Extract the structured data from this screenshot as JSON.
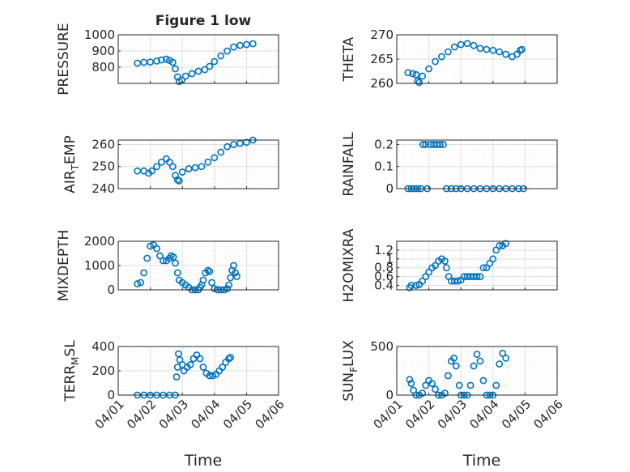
{
  "figure": {
    "title": "Figure 1 low",
    "xlabel": "Time",
    "colors": {
      "marker": "#0072BD",
      "grid": "#dedede",
      "axis": "#262626"
    },
    "x_ticks": [
      "04/01",
      "04/02",
      "04/03",
      "04/04",
      "04/05",
      "04/06"
    ]
  },
  "chart_data": [
    {
      "id": "pressure",
      "type": "scatter",
      "ylabel": "PRESSURE",
      "ylim": [
        700,
        1000
      ],
      "yticks": [
        800,
        900,
        1000
      ],
      "yticklabels": [
        "800",
        "900",
        "1000"
      ],
      "xlim": [
        "04/01",
        "04/06"
      ],
      "show_xticks": false,
      "points": [
        [
          1.6,
          825
        ],
        [
          1.8,
          830
        ],
        [
          2.0,
          832
        ],
        [
          2.2,
          838
        ],
        [
          2.35,
          845
        ],
        [
          2.5,
          850
        ],
        [
          2.6,
          842
        ],
        [
          2.7,
          830
        ],
        [
          2.78,
          790
        ],
        [
          2.85,
          740
        ],
        [
          2.9,
          712
        ],
        [
          2.98,
          720
        ],
        [
          3.1,
          745
        ],
        [
          3.3,
          760
        ],
        [
          3.5,
          775
        ],
        [
          3.7,
          785
        ],
        [
          3.85,
          805
        ],
        [
          4.0,
          835
        ],
        [
          4.2,
          870
        ],
        [
          4.4,
          900
        ],
        [
          4.6,
          925
        ],
        [
          4.8,
          935
        ],
        [
          5.0,
          940
        ],
        [
          5.2,
          945
        ]
      ]
    },
    {
      "id": "theta",
      "type": "scatter",
      "ylabel": "THETA",
      "ylim": [
        260,
        270
      ],
      "yticks": [
        260,
        265,
        270
      ],
      "yticklabels": [
        "260",
        "265",
        "270"
      ],
      "xlim": [
        "04/01",
        "04/06"
      ],
      "show_xticks": false,
      "points": [
        [
          1.35,
          262.2
        ],
        [
          1.5,
          262.0
        ],
        [
          1.6,
          261.8
        ],
        [
          1.65,
          260.5
        ],
        [
          1.7,
          260.2
        ],
        [
          1.8,
          261.5
        ],
        [
          2.0,
          263.0
        ],
        [
          2.2,
          264.5
        ],
        [
          2.4,
          265.5
        ],
        [
          2.6,
          266.5
        ],
        [
          2.8,
          267.5
        ],
        [
          3.0,
          268.0
        ],
        [
          3.2,
          268.2
        ],
        [
          3.4,
          267.8
        ],
        [
          3.6,
          267.2
        ],
        [
          3.8,
          267.0
        ],
        [
          4.0,
          266.8
        ],
        [
          4.2,
          266.5
        ],
        [
          4.4,
          266.0
        ],
        [
          4.6,
          265.5
        ],
        [
          4.75,
          266.0
        ],
        [
          4.85,
          266.8
        ],
        [
          4.9,
          267.0
        ]
      ]
    },
    {
      "id": "air_temp",
      "type": "scatter",
      "ylabel": "AIR",
      "ylabel_sub": "T",
      "ylabel_suffix": "EMP",
      "ylim": [
        240,
        262
      ],
      "yticks": [
        240,
        250,
        260
      ],
      "yticklabels": [
        "240",
        "250",
        "260"
      ],
      "xlim": [
        "04/01",
        "04/06"
      ],
      "show_xticks": false,
      "points": [
        [
          1.6,
          248
        ],
        [
          1.8,
          248
        ],
        [
          1.95,
          247
        ],
        [
          2.05,
          248
        ],
        [
          2.2,
          250
        ],
        [
          2.35,
          252
        ],
        [
          2.5,
          253.5
        ],
        [
          2.6,
          252
        ],
        [
          2.7,
          250
        ],
        [
          2.78,
          246
        ],
        [
          2.85,
          244
        ],
        [
          2.9,
          243.5
        ],
        [
          3.0,
          247.5
        ],
        [
          3.2,
          249
        ],
        [
          3.4,
          249.5
        ],
        [
          3.6,
          250
        ],
        [
          3.8,
          252
        ],
        [
          4.0,
          254
        ],
        [
          4.2,
          256.5
        ],
        [
          4.4,
          259
        ],
        [
          4.6,
          260
        ],
        [
          4.8,
          260.5
        ],
        [
          5.0,
          261
        ],
        [
          5.2,
          262
        ]
      ]
    },
    {
      "id": "rainfall",
      "type": "scatter",
      "ylabel": "RAINFALL",
      "ylim": [
        0,
        0.22
      ],
      "yticks": [
        0,
        0.1,
        0.2
      ],
      "yticklabels": [
        "0",
        "0.1",
        "0.2"
      ],
      "xlim": [
        "04/01",
        "04/06"
      ],
      "show_xticks": false,
      "points": [
        [
          1.35,
          0
        ],
        [
          1.45,
          0
        ],
        [
          1.55,
          0
        ],
        [
          1.65,
          0
        ],
        [
          1.75,
          0
        ],
        [
          1.82,
          0.2
        ],
        [
          1.9,
          0.2
        ],
        [
          1.95,
          0
        ],
        [
          2.05,
          0.2
        ],
        [
          2.15,
          0.2
        ],
        [
          2.25,
          0.2
        ],
        [
          2.35,
          0.2
        ],
        [
          2.45,
          0.2
        ],
        [
          2.55,
          0
        ],
        [
          2.7,
          0
        ],
        [
          2.85,
          0
        ],
        [
          3.0,
          0
        ],
        [
          3.2,
          0
        ],
        [
          3.4,
          0
        ],
        [
          3.6,
          0
        ],
        [
          3.8,
          0
        ],
        [
          4.0,
          0
        ],
        [
          4.2,
          0
        ],
        [
          4.4,
          0
        ],
        [
          4.6,
          0
        ],
        [
          4.8,
          0
        ],
        [
          4.95,
          0
        ]
      ]
    },
    {
      "id": "mixdepth",
      "type": "scatter",
      "ylabel": "MIXDEPTH",
      "ylim": [
        0,
        2000
      ],
      "yticks": [
        0,
        1000,
        2000
      ],
      "yticklabels": [
        "0",
        "1000",
        "2000"
      ],
      "xlim": [
        "04/01",
        "04/06"
      ],
      "show_xticks": false,
      "points": [
        [
          1.6,
          250
        ],
        [
          1.7,
          300
        ],
        [
          1.8,
          700
        ],
        [
          1.9,
          1300
        ],
        [
          2.0,
          1800
        ],
        [
          2.1,
          1850
        ],
        [
          2.2,
          1700
        ],
        [
          2.3,
          1400
        ],
        [
          2.4,
          1200
        ],
        [
          2.5,
          1200
        ],
        [
          2.6,
          1300
        ],
        [
          2.65,
          1400
        ],
        [
          2.72,
          1350
        ],
        [
          2.78,
          1100
        ],
        [
          2.85,
          700
        ],
        [
          2.9,
          400
        ],
        [
          3.0,
          300
        ],
        [
          3.1,
          200
        ],
        [
          3.2,
          100
        ],
        [
          3.3,
          0
        ],
        [
          3.4,
          0
        ],
        [
          3.5,
          0
        ],
        [
          3.55,
          100
        ],
        [
          3.6,
          200
        ],
        [
          3.65,
          400
        ],
        [
          3.72,
          700
        ],
        [
          3.8,
          800
        ],
        [
          3.85,
          750
        ],
        [
          3.92,
          300
        ],
        [
          4.0,
          50
        ],
        [
          4.1,
          0
        ],
        [
          4.2,
          0
        ],
        [
          4.3,
          0
        ],
        [
          4.4,
          50
        ],
        [
          4.45,
          200
        ],
        [
          4.5,
          500
        ],
        [
          4.55,
          800
        ],
        [
          4.6,
          1000
        ],
        [
          4.65,
          700
        ],
        [
          4.7,
          550
        ]
      ]
    },
    {
      "id": "h2omixra",
      "type": "scatter",
      "ylabel": "H2OMIXRA",
      "ylim": [
        0.3,
        1.4
      ],
      "yticks": [
        0.4,
        0.6,
        0.8,
        1,
        1.2
      ],
      "yticklabels": [
        "0.4",
        "0.6",
        "0.8",
        "1",
        "1.2"
      ],
      "xlim": [
        "04/01",
        "04/06"
      ],
      "show_xticks": false,
      "points": [
        [
          1.4,
          0.35
        ],
        [
          1.45,
          0.4
        ],
        [
          1.6,
          0.4
        ],
        [
          1.7,
          0.42
        ],
        [
          1.8,
          0.5
        ],
        [
          1.9,
          0.6
        ],
        [
          2.0,
          0.7
        ],
        [
          2.1,
          0.8
        ],
        [
          2.2,
          0.85
        ],
        [
          2.3,
          0.95
        ],
        [
          2.4,
          1.0
        ],
        [
          2.5,
          0.95
        ],
        [
          2.55,
          0.8
        ],
        [
          2.62,
          0.6
        ],
        [
          2.7,
          0.5
        ],
        [
          2.8,
          0.5
        ],
        [
          2.9,
          0.5
        ],
        [
          3.0,
          0.52
        ],
        [
          3.1,
          0.6
        ],
        [
          3.2,
          0.6
        ],
        [
          3.3,
          0.6
        ],
        [
          3.4,
          0.6
        ],
        [
          3.5,
          0.6
        ],
        [
          3.6,
          0.6
        ],
        [
          3.7,
          0.8
        ],
        [
          3.8,
          0.8
        ],
        [
          3.9,
          0.9
        ],
        [
          4.0,
          1.0
        ],
        [
          4.1,
          1.2
        ],
        [
          4.2,
          1.3
        ],
        [
          4.3,
          1.3
        ],
        [
          4.4,
          1.35
        ]
      ]
    },
    {
      "id": "terr_msl",
      "type": "scatter",
      "ylabel": "TERR",
      "ylabel_sub": "M",
      "ylabel_suffix": "SL",
      "ylim": [
        0,
        400
      ],
      "yticks": [
        0,
        200,
        400
      ],
      "yticklabels": [
        "0",
        "200",
        "400"
      ],
      "xlim": [
        "04/01",
        "04/06"
      ],
      "show_xticks": true,
      "points": [
        [
          1.6,
          0
        ],
        [
          1.8,
          0
        ],
        [
          2.0,
          0
        ],
        [
          2.2,
          0
        ],
        [
          2.4,
          0
        ],
        [
          2.6,
          0
        ],
        [
          2.78,
          0
        ],
        [
          2.82,
          150
        ],
        [
          2.85,
          230
        ],
        [
          2.88,
          340
        ],
        [
          2.92,
          290
        ],
        [
          3.0,
          250
        ],
        [
          3.05,
          200
        ],
        [
          3.15,
          230
        ],
        [
          3.25,
          250
        ],
        [
          3.35,
          300
        ],
        [
          3.45,
          330
        ],
        [
          3.55,
          300
        ],
        [
          3.65,
          230
        ],
        [
          3.75,
          180
        ],
        [
          3.85,
          160
        ],
        [
          3.95,
          160
        ],
        [
          4.05,
          170
        ],
        [
          4.15,
          200
        ],
        [
          4.25,
          230
        ],
        [
          4.35,
          270
        ],
        [
          4.45,
          300
        ],
        [
          4.5,
          310
        ]
      ]
    },
    {
      "id": "sun_flux",
      "type": "scatter",
      "ylabel": "SUN",
      "ylabel_sub": "F",
      "ylabel_suffix": "LUX",
      "ylim": [
        0,
        500
      ],
      "yticks": [
        0,
        500
      ],
      "yticklabels": [
        "0",
        "500"
      ],
      "xlim": [
        "04/01",
        "04/06"
      ],
      "show_xticks": true,
      "points": [
        [
          1.4,
          160
        ],
        [
          1.45,
          120
        ],
        [
          1.52,
          50
        ],
        [
          1.6,
          0
        ],
        [
          1.7,
          0
        ],
        [
          1.8,
          20
        ],
        [
          1.9,
          100
        ],
        [
          2.0,
          150
        ],
        [
          2.1,
          120
        ],
        [
          2.2,
          60
        ],
        [
          2.3,
          0
        ],
        [
          2.4,
          0
        ],
        [
          2.5,
          20
        ],
        [
          2.6,
          200
        ],
        [
          2.7,
          350
        ],
        [
          2.78,
          380
        ],
        [
          2.85,
          300
        ],
        [
          2.95,
          100
        ],
        [
          3.0,
          0
        ],
        [
          3.1,
          0
        ],
        [
          3.2,
          0
        ],
        [
          3.3,
          100
        ],
        [
          3.4,
          300
        ],
        [
          3.5,
          420
        ],
        [
          3.6,
          350
        ],
        [
          3.7,
          150
        ],
        [
          3.8,
          0
        ],
        [
          3.9,
          0
        ],
        [
          4.0,
          0
        ],
        [
          4.1,
          100
        ],
        [
          4.2,
          320
        ],
        [
          4.3,
          430
        ],
        [
          4.4,
          380
        ]
      ]
    }
  ]
}
